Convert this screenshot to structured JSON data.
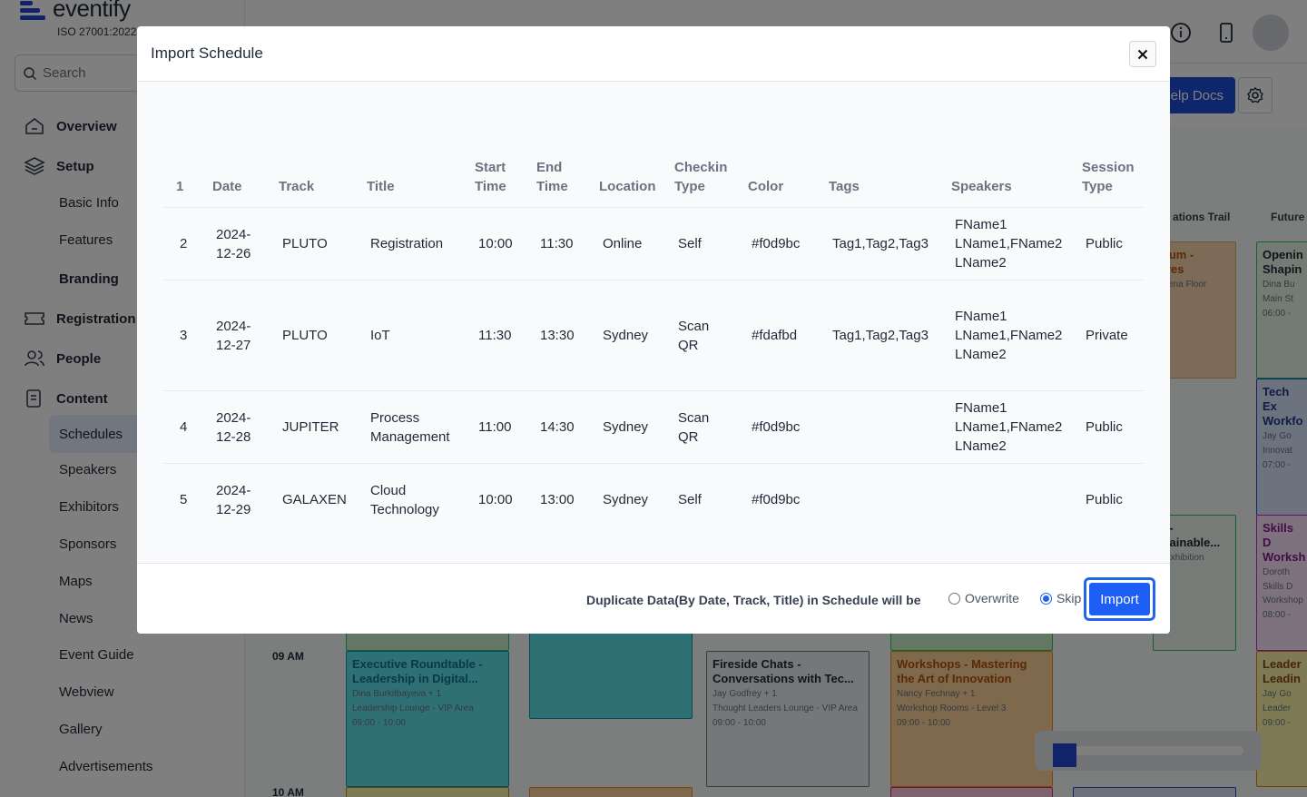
{
  "app": {
    "brand": "eventify",
    "iso": "ISO 27001:2022",
    "search_placeholder": "Search",
    "help_docs": "elp Docs"
  },
  "sidebar": {
    "overview": "Overview",
    "setup": "Setup",
    "basic_info": "Basic Info",
    "features": "Features",
    "branding": "Branding",
    "registration": "Registration",
    "people": "People",
    "content": "Content",
    "schedules": "Schedules",
    "speakers": "Speakers",
    "exhibitors": "Exhibitors",
    "sponsors": "Sponsors",
    "maps": "Maps",
    "news": "News",
    "event_guide": "Event Guide",
    "webview": "Webview",
    "gallery": "Gallery",
    "advertisements": "Advertisements"
  },
  "background": {
    "col_innovations": "ations Trail",
    "col_future": "Future",
    "time_9": "09 AM",
    "time_10": "10 AM",
    "cards": {
      "c1": {
        "title": "sium -\nures",
        "meta": "Arena Floor"
      },
      "c2": {
        "title": "Openin\nShapin",
        "m1": "Dina Bu",
        "m2": "Main St",
        "m3": "06:00 -"
      },
      "c3": {
        "title": "Tech Ex\nWorkfo",
        "m1": "Jay Go",
        "m2": "Innovat",
        "m3": "07:00 -"
      },
      "c4": {
        "title": "o -\nstainable...",
        "meta": "- Exhibition"
      },
      "c5": {
        "title": "Skills D\nWorksh",
        "m1": "Doroth",
        "m2": "Skills D\nWorkshop",
        "m3": "08:00 -"
      },
      "c6": {
        "title": "Executive Roundtable - Leadership in Digital...",
        "m1": "Dina Burkitbayeva + 1",
        "m2": "Leadership Lounge - VIP Area",
        "m3": "09:00 - 10:00"
      },
      "c7": {
        "title": "Fireside Chats - Conversations with Tec...",
        "m1": "Jay Godfrey + 1",
        "m2": "Thought Leaders Lounge - VIP Area",
        "m3": "09:00 - 10:00"
      },
      "c8": {
        "title": "Workshops - Mastering the Art of Innovation",
        "m1": "Nancy Fechnay + 1",
        "m2": "Workshop Rooms - Level 3",
        "m3": "09:00 - 10:00"
      },
      "c9": {
        "title": "Leader\nLeadin",
        "m1": "Jay Go",
        "m2": "Leader",
        "m3": "09:00 -"
      }
    }
  },
  "modal": {
    "title": "Import Schedule",
    "columns": [
      "1",
      "Date",
      "Track",
      "Title",
      "Start Time",
      "End Time",
      "Location",
      "Checkin Type",
      "Color",
      "Tags",
      "Speakers",
      "Session Type"
    ],
    "rows": [
      [
        "2",
        "2024-12-26",
        "PLUTO",
        "Registration",
        "10:00",
        "11:30",
        "Online",
        "Self",
        "#f0d9bc",
        "Tag1,Tag2,Tag3",
        "FName1 LName1,FName2 LName2",
        "Public"
      ],
      [
        "3",
        "2024-12-27",
        "PLUTO",
        "IoT",
        "11:30",
        "13:30",
        "Sydney",
        "Scan QR",
        "#fdafbd",
        "Tag1,Tag2,Tag3",
        "FName1 LName1,FName2 LName2",
        "Private"
      ],
      [
        "4",
        "2024-12-28",
        "JUPITER",
        "Process Management",
        "11:00",
        "14:30",
        "Sydney",
        "Scan QR",
        "#f0d9bc",
        "",
        "FName1 LName1,FName2 LName2",
        "Public"
      ],
      [
        "5",
        "2024-12-29",
        "GALAXEN",
        "Cloud Technology",
        "10:00",
        "13:00",
        "Sydney",
        "Self",
        "#f0d9bc",
        "",
        "",
        "Public"
      ]
    ],
    "footer": {
      "duplicate_label": "Duplicate Data(By Date, Track, Title) in Schedule will be",
      "overwrite": "Overwrite",
      "skip": "Skip",
      "selected": "Skip",
      "import_label": "Import"
    }
  }
}
